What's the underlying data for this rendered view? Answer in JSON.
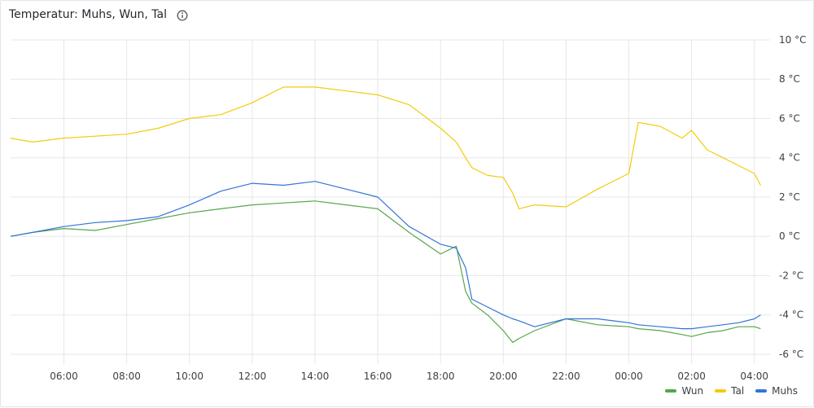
{
  "panel": {
    "title": "Temperatur: Muhs, Wun, Tal",
    "info_icon": "info-circle-icon"
  },
  "chart_data": {
    "type": "line",
    "title": "Temperatur: Muhs, Wun, Tal",
    "xlabel": "",
    "ylabel": "",
    "x_tick_labels": [
      "06:00",
      "08:00",
      "10:00",
      "12:00",
      "14:00",
      "16:00",
      "18:00",
      "20:00",
      "22:00",
      "00:00",
      "02:00",
      "04:00"
    ],
    "y_tick_labels": [
      "10 °C",
      "8 °C",
      "6 °C",
      "4 °C",
      "2 °C",
      "0 °C",
      "-2 °C",
      "-4 °C",
      "-6 °C"
    ],
    "ylim": [
      -6.5,
      10
    ],
    "y_ticks": [
      10,
      8,
      6,
      4,
      2,
      0,
      -2,
      -4,
      -6
    ],
    "xlim_hours": [
      4.3,
      28.5
    ],
    "x_ticks_hours": [
      6,
      8,
      10,
      12,
      14,
      16,
      18,
      20,
      22,
      24,
      26,
      28
    ],
    "grid": true,
    "legend_position": "bottom-right",
    "x_hours": [
      4.3,
      5,
      6,
      7,
      8,
      9,
      10,
      11,
      12,
      13,
      14,
      15,
      16,
      17,
      18,
      18.5,
      18.8,
      19,
      19.5,
      20,
      20.3,
      20.5,
      21,
      22,
      23,
      24,
      24.3,
      25,
      25.7,
      26,
      26.5,
      27,
      27.5,
      28,
      28.2
    ],
    "series": [
      {
        "name": "Wun",
        "color": "#56a64b",
        "values": [
          0.0,
          0.2,
          0.4,
          0.3,
          0.6,
          0.9,
          1.2,
          1.4,
          1.6,
          1.7,
          1.8,
          1.6,
          1.4,
          0.2,
          -0.9,
          -0.5,
          -2.8,
          -3.4,
          -4.0,
          -4.8,
          -5.4,
          -5.2,
          -4.8,
          -4.2,
          -4.5,
          -4.6,
          -4.7,
          -4.8,
          -5.0,
          -5.1,
          -4.9,
          -4.8,
          -4.6,
          -4.6,
          -4.7
        ]
      },
      {
        "name": "Tal",
        "color": "#f2cc0c",
        "values": [
          5.0,
          4.8,
          5.0,
          5.1,
          5.2,
          5.5,
          6.0,
          6.2,
          6.8,
          7.6,
          7.6,
          7.4,
          7.2,
          6.7,
          5.5,
          4.8,
          4.0,
          3.5,
          3.1,
          3.0,
          2.2,
          1.4,
          1.6,
          1.5,
          2.4,
          3.2,
          5.8,
          5.6,
          5.0,
          5.4,
          4.4,
          4.0,
          3.6,
          3.2,
          2.6
        ]
      },
      {
        "name": "Muhs",
        "color": "#3274d9",
        "values": [
          0.0,
          0.2,
          0.5,
          0.7,
          0.8,
          1.0,
          1.6,
          2.3,
          2.7,
          2.6,
          2.8,
          2.4,
          2.0,
          0.5,
          -0.4,
          -0.6,
          -1.6,
          -3.2,
          -3.6,
          -4.0,
          -4.2,
          -4.3,
          -4.6,
          -4.2,
          -4.2,
          -4.4,
          -4.5,
          -4.6,
          -4.7,
          -4.7,
          -4.6,
          -4.5,
          -4.4,
          -4.2,
          -4.0
        ]
      }
    ]
  }
}
